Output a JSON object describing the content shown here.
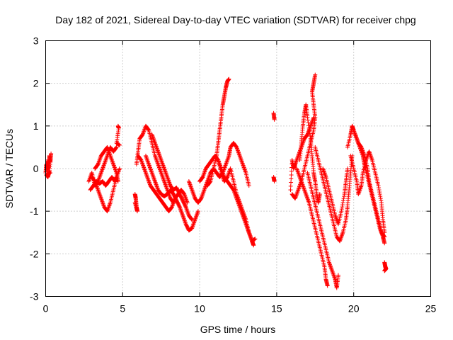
{
  "chart_data": {
    "type": "scatter",
    "title": "Day 182 of 2021, Sidereal Day-to-day VTEC variation (SDTVAR) for receiver chpg",
    "xlabel": "GPS time / hours",
    "ylabel": "SDTVAR / TECUs",
    "xlim": [
      0,
      25
    ],
    "ylim": [
      -3,
      3
    ],
    "xticks": [
      0,
      5,
      10,
      15,
      20,
      25
    ],
    "yticks": [
      -3,
      -2,
      -1,
      0,
      1,
      2,
      3
    ],
    "xtick_labels": [
      "0",
      "5",
      "10",
      "15",
      "20",
      "25"
    ],
    "ytick_labels": [
      "-3",
      "-2",
      "-1",
      "0",
      "1",
      "2",
      "3"
    ],
    "grid": true,
    "legend": "none",
    "marker": "+",
    "series_color": "#ff0000",
    "tracks": [
      [
        [
          0.0,
          -0.1
        ],
        [
          0.05,
          0.1
        ],
        [
          0.1,
          -0.05
        ],
        [
          0.15,
          0.2
        ],
        [
          0.2,
          0.0
        ],
        [
          0.25,
          0.3
        ],
        [
          0.3,
          0.15
        ],
        [
          0.35,
          0.35
        ],
        [
          0.25,
          -0.05
        ],
        [
          0.15,
          -0.2
        ],
        [
          0.05,
          -0.15
        ],
        [
          0.3,
          -0.1
        ]
      ],
      [
        [
          2.8,
          -0.3
        ],
        [
          3.0,
          -0.1
        ],
        [
          3.2,
          -0.4
        ],
        [
          3.4,
          -0.3
        ],
        [
          3.6,
          -0.1
        ],
        [
          3.8,
          0.1
        ],
        [
          4.0,
          0.3
        ],
        [
          4.2,
          0.5
        ],
        [
          4.4,
          0.4
        ],
        [
          4.6,
          0.5
        ]
      ],
      [
        [
          2.9,
          -0.5
        ],
        [
          3.1,
          -0.4
        ],
        [
          3.3,
          -0.3
        ],
        [
          3.5,
          -0.35
        ],
        [
          3.7,
          -0.3
        ],
        [
          3.9,
          -0.4
        ],
        [
          4.1,
          -0.3
        ],
        [
          4.3,
          -0.2
        ],
        [
          4.5,
          -0.3
        ],
        [
          4.6,
          -0.2
        ]
      ],
      [
        [
          3.0,
          -0.2
        ],
        [
          3.2,
          -0.3
        ],
        [
          3.4,
          -0.5
        ],
        [
          3.6,
          -0.7
        ],
        [
          3.8,
          -0.9
        ],
        [
          4.0,
          -1.0
        ],
        [
          4.2,
          -0.8
        ],
        [
          4.4,
          -0.5
        ],
        [
          4.6,
          -0.2
        ],
        [
          4.8,
          0.0
        ]
      ],
      [
        [
          3.2,
          0.0
        ],
        [
          3.4,
          0.1
        ],
        [
          3.6,
          0.3
        ],
        [
          3.8,
          0.4
        ],
        [
          4.0,
          0.5
        ],
        [
          4.2,
          0.3
        ],
        [
          4.4,
          0.1
        ],
        [
          4.6,
          -0.1
        ],
        [
          4.7,
          -0.3
        ]
      ],
      [
        [
          4.7,
          1.0
        ],
        [
          4.75,
          0.95
        ],
        [
          4.6,
          0.6
        ],
        [
          4.8,
          0.55
        ]
      ],
      [
        [
          5.8,
          -0.6
        ],
        [
          5.85,
          -0.7
        ],
        [
          5.9,
          -0.9
        ],
        [
          5.95,
          -1.0
        ],
        [
          5.8,
          -0.8
        ]
      ],
      [
        [
          5.9,
          0.1
        ],
        [
          6.0,
          0.4
        ],
        [
          6.1,
          0.7
        ],
        [
          6.3,
          0.8
        ],
        [
          6.5,
          1.0
        ],
        [
          6.7,
          0.9
        ],
        [
          6.9,
          0.6
        ],
        [
          7.1,
          0.3
        ],
        [
          7.3,
          0.1
        ],
        [
          7.5,
          -0.1
        ],
        [
          7.7,
          -0.3
        ],
        [
          7.9,
          -0.5
        ],
        [
          8.1,
          -0.7
        ],
        [
          8.3,
          -0.8
        ]
      ],
      [
        [
          6.0,
          0.3
        ],
        [
          6.2,
          0.2
        ],
        [
          6.4,
          0.0
        ],
        [
          6.6,
          -0.2
        ],
        [
          6.8,
          -0.4
        ],
        [
          7.0,
          -0.5
        ],
        [
          7.2,
          -0.6
        ],
        [
          7.4,
          -0.7
        ],
        [
          7.6,
          -0.8
        ],
        [
          7.8,
          -0.9
        ],
        [
          8.0,
          -1.0
        ],
        [
          8.2,
          -0.9
        ],
        [
          8.4,
          -0.7
        ],
        [
          8.6,
          -0.6
        ],
        [
          8.8,
          -0.5
        ],
        [
          9.0,
          -0.6
        ],
        [
          9.2,
          -0.8
        ]
      ],
      [
        [
          6.5,
          0.3
        ],
        [
          6.7,
          0.1
        ],
        [
          6.9,
          -0.1
        ],
        [
          7.1,
          -0.3
        ],
        [
          7.3,
          -0.5
        ],
        [
          7.5,
          -0.6
        ],
        [
          7.7,
          -0.65
        ],
        [
          7.9,
          -0.6
        ],
        [
          8.1,
          -0.5
        ],
        [
          8.3,
          -0.6
        ],
        [
          8.5,
          -0.75
        ],
        [
          8.7,
          -0.9
        ],
        [
          8.9,
          -1.1
        ],
        [
          9.1,
          -1.3
        ],
        [
          9.3,
          -1.45
        ],
        [
          9.5,
          -1.4
        ],
        [
          9.7,
          -1.2
        ],
        [
          9.9,
          -1.0
        ]
      ],
      [
        [
          6.9,
          0.8
        ],
        [
          7.1,
          0.6
        ],
        [
          7.3,
          0.4
        ],
        [
          7.5,
          0.2
        ],
        [
          7.7,
          0.0
        ],
        [
          7.9,
          -0.2
        ],
        [
          8.1,
          -0.4
        ],
        [
          8.3,
          -0.5
        ],
        [
          8.5,
          -0.45
        ],
        [
          8.7,
          -0.6
        ],
        [
          8.9,
          -0.75
        ],
        [
          9.1,
          -0.9
        ],
        [
          9.3,
          -1.1
        ],
        [
          9.5,
          -1.2
        ]
      ],
      [
        [
          9.3,
          -0.3
        ],
        [
          9.5,
          -0.5
        ],
        [
          9.7,
          -0.7
        ],
        [
          9.9,
          -0.8
        ],
        [
          10.1,
          -0.7
        ],
        [
          10.3,
          -0.5
        ],
        [
          10.5,
          -0.3
        ],
        [
          10.7,
          -0.1
        ],
        [
          10.9,
          0.0
        ],
        [
          11.1,
          -0.1
        ],
        [
          11.3,
          -0.2
        ],
        [
          11.5,
          -0.1
        ],
        [
          11.7,
          0.1
        ],
        [
          11.9,
          0.3
        ],
        [
          12.0,
          0.5
        ],
        [
          12.2,
          0.6
        ],
        [
          12.4,
          0.5
        ],
        [
          12.6,
          0.3
        ],
        [
          12.8,
          0.1
        ],
        [
          13.0,
          -0.1
        ],
        [
          13.2,
          -0.4
        ]
      ],
      [
        [
          10.0,
          -0.3
        ],
        [
          10.2,
          -0.2
        ],
        [
          10.4,
          0.0
        ],
        [
          10.6,
          0.1
        ],
        [
          10.8,
          0.2
        ],
        [
          11.0,
          0.3
        ],
        [
          11.2,
          0.2
        ],
        [
          11.4,
          0.0
        ],
        [
          11.6,
          -0.2
        ],
        [
          11.8,
          -0.3
        ],
        [
          12.0,
          -0.4
        ],
        [
          12.2,
          -0.5
        ],
        [
          12.4,
          -0.7
        ],
        [
          12.6,
          -0.9
        ],
        [
          12.8,
          -1.1
        ],
        [
          13.0,
          -1.3
        ],
        [
          13.2,
          -1.5
        ],
        [
          13.4,
          -1.7
        ],
        [
          13.5,
          -1.8
        ]
      ],
      [
        [
          10.5,
          -0.4
        ],
        [
          10.7,
          -0.3
        ],
        [
          10.9,
          0.0
        ],
        [
          11.1,
          0.3
        ],
        [
          11.2,
          0.6
        ],
        [
          11.3,
          0.9
        ],
        [
          11.4,
          1.2
        ],
        [
          11.5,
          1.5
        ],
        [
          11.6,
          1.7
        ],
        [
          11.7,
          1.9
        ],
        [
          11.8,
          2.05
        ],
        [
          11.9,
          2.1
        ]
      ],
      [
        [
          11.2,
          0.2
        ],
        [
          11.4,
          -0.1
        ],
        [
          11.6,
          -0.3
        ],
        [
          11.8,
          -0.2
        ],
        [
          12.0,
          0.0
        ],
        [
          12.2,
          -0.3
        ],
        [
          12.4,
          -0.6
        ],
        [
          12.6,
          -0.8
        ],
        [
          12.8,
          -1.0
        ],
        [
          13.0,
          -1.2
        ],
        [
          13.2,
          -1.5
        ],
        [
          13.4,
          -1.7
        ],
        [
          13.6,
          -1.65
        ]
      ],
      [
        [
          14.8,
          1.3
        ],
        [
          14.85,
          1.15
        ]
      ],
      [
        [
          14.8,
          -0.2
        ],
        [
          14.85,
          -0.3
        ]
      ],
      [
        [
          15.9,
          -0.5
        ],
        [
          16.0,
          0.2
        ],
        [
          16.1,
          0.0
        ],
        [
          16.2,
          0.1
        ],
        [
          16.4,
          0.3
        ],
        [
          16.6,
          0.5
        ],
        [
          16.8,
          0.7
        ],
        [
          17.0,
          0.8
        ],
        [
          17.2,
          1.0
        ],
        [
          17.4,
          1.2
        ]
      ],
      [
        [
          16.0,
          -0.6
        ],
        [
          16.2,
          -0.7
        ],
        [
          16.4,
          -0.5
        ],
        [
          16.6,
          -0.3
        ],
        [
          16.8,
          0.0
        ],
        [
          17.0,
          0.3
        ],
        [
          17.2,
          0.6
        ],
        [
          17.4,
          0.9
        ],
        [
          17.5,
          1.2
        ],
        [
          17.4,
          1.5
        ],
        [
          17.3,
          1.8
        ],
        [
          17.4,
          2.0
        ],
        [
          17.5,
          2.2
        ]
      ],
      [
        [
          16.5,
          0.2
        ],
        [
          16.6,
          0.6
        ],
        [
          16.7,
          1.0
        ],
        [
          16.8,
          1.3
        ],
        [
          16.9,
          1.5
        ],
        [
          17.0,
          1.2
        ],
        [
          17.2,
          0.7
        ],
        [
          17.3,
          0.3
        ],
        [
          17.4,
          -0.1
        ],
        [
          17.5,
          -0.3
        ],
        [
          17.6,
          -0.6
        ],
        [
          17.7,
          -0.8
        ],
        [
          17.8,
          -0.6
        ]
      ],
      [
        [
          16.3,
          0.0
        ],
        [
          16.5,
          -0.2
        ],
        [
          16.7,
          -0.4
        ],
        [
          16.9,
          -0.6
        ],
        [
          17.1,
          -0.8
        ],
        [
          17.3,
          -1.1
        ],
        [
          17.5,
          -1.4
        ],
        [
          17.7,
          -1.7
        ],
        [
          17.9,
          -2.0
        ],
        [
          18.1,
          -2.3
        ],
        [
          18.2,
          -2.6
        ],
        [
          18.3,
          -2.75
        ]
      ],
      [
        [
          17.0,
          -0.1
        ],
        [
          17.2,
          -0.4
        ],
        [
          17.4,
          -0.7
        ],
        [
          17.6,
          -1.0
        ],
        [
          17.8,
          -1.3
        ],
        [
          18.0,
          -1.6
        ],
        [
          18.2,
          -1.9
        ],
        [
          18.4,
          -2.2
        ],
        [
          18.6,
          -2.4
        ],
        [
          18.8,
          -2.6
        ],
        [
          18.9,
          -2.8
        ],
        [
          19.0,
          -2.5
        ]
      ],
      [
        [
          17.5,
          0.5
        ],
        [
          17.7,
          0.2
        ],
        [
          17.9,
          -0.1
        ],
        [
          18.1,
          -0.4
        ],
        [
          18.3,
          -0.7
        ],
        [
          18.5,
          -1.0
        ],
        [
          18.7,
          -1.3
        ],
        [
          18.9,
          -1.6
        ],
        [
          19.1,
          -1.7
        ],
        [
          19.3,
          -1.5
        ],
        [
          19.5,
          -1.2
        ],
        [
          19.6,
          -0.9
        ],
        [
          19.7,
          -0.5
        ],
        [
          19.8,
          -0.1
        ],
        [
          19.9,
          0.3
        ]
      ],
      [
        [
          18.0,
          0.0
        ],
        [
          18.2,
          -0.2
        ],
        [
          18.4,
          -0.5
        ],
        [
          18.6,
          -0.8
        ],
        [
          18.8,
          -1.1
        ],
        [
          19.0,
          -1.3
        ],
        [
          19.2,
          -1.0
        ],
        [
          19.4,
          -0.6
        ],
        [
          19.5,
          -0.3
        ],
        [
          19.6,
          0.0
        ]
      ],
      [
        [
          19.6,
          0.5
        ],
        [
          19.8,
          0.8
        ],
        [
          19.9,
          1.0
        ],
        [
          20.0,
          0.9
        ],
        [
          20.2,
          0.7
        ],
        [
          20.4,
          0.5
        ],
        [
          20.6,
          0.3
        ],
        [
          20.7,
          0.1
        ],
        [
          20.9,
          -0.2
        ],
        [
          21.1,
          -0.5
        ],
        [
          21.3,
          -0.8
        ],
        [
          21.5,
          -1.1
        ],
        [
          21.7,
          -1.4
        ],
        [
          21.9,
          -1.6
        ],
        [
          22.0,
          -1.75
        ]
      ],
      [
        [
          19.8,
          0.3
        ],
        [
          20.0,
          0.0
        ],
        [
          20.2,
          -0.3
        ],
        [
          20.3,
          -0.6
        ],
        [
          20.5,
          -0.4
        ],
        [
          20.6,
          -0.1
        ],
        [
          20.8,
          0.2
        ],
        [
          21.0,
          0.4
        ],
        [
          21.2,
          0.2
        ],
        [
          21.4,
          -0.1
        ],
        [
          21.6,
          -0.4
        ],
        [
          21.8,
          -0.8
        ],
        [
          21.9,
          -1.2
        ],
        [
          22.0,
          -1.5
        ]
      ],
      [
        [
          20.1,
          0.8
        ],
        [
          20.3,
          0.6
        ],
        [
          20.5,
          0.5
        ],
        [
          20.7,
          0.3
        ],
        [
          20.9,
          0.0
        ],
        [
          21.0,
          -0.3
        ],
        [
          21.2,
          -0.6
        ],
        [
          21.4,
          -0.9
        ],
        [
          21.6,
          -1.2
        ],
        [
          21.8,
          -1.5
        ],
        [
          22.0,
          -1.6
        ]
      ],
      [
        [
          22.0,
          -2.2
        ],
        [
          22.05,
          -2.3
        ],
        [
          22.1,
          -2.35
        ],
        [
          22.0,
          -2.4
        ]
      ]
    ]
  }
}
